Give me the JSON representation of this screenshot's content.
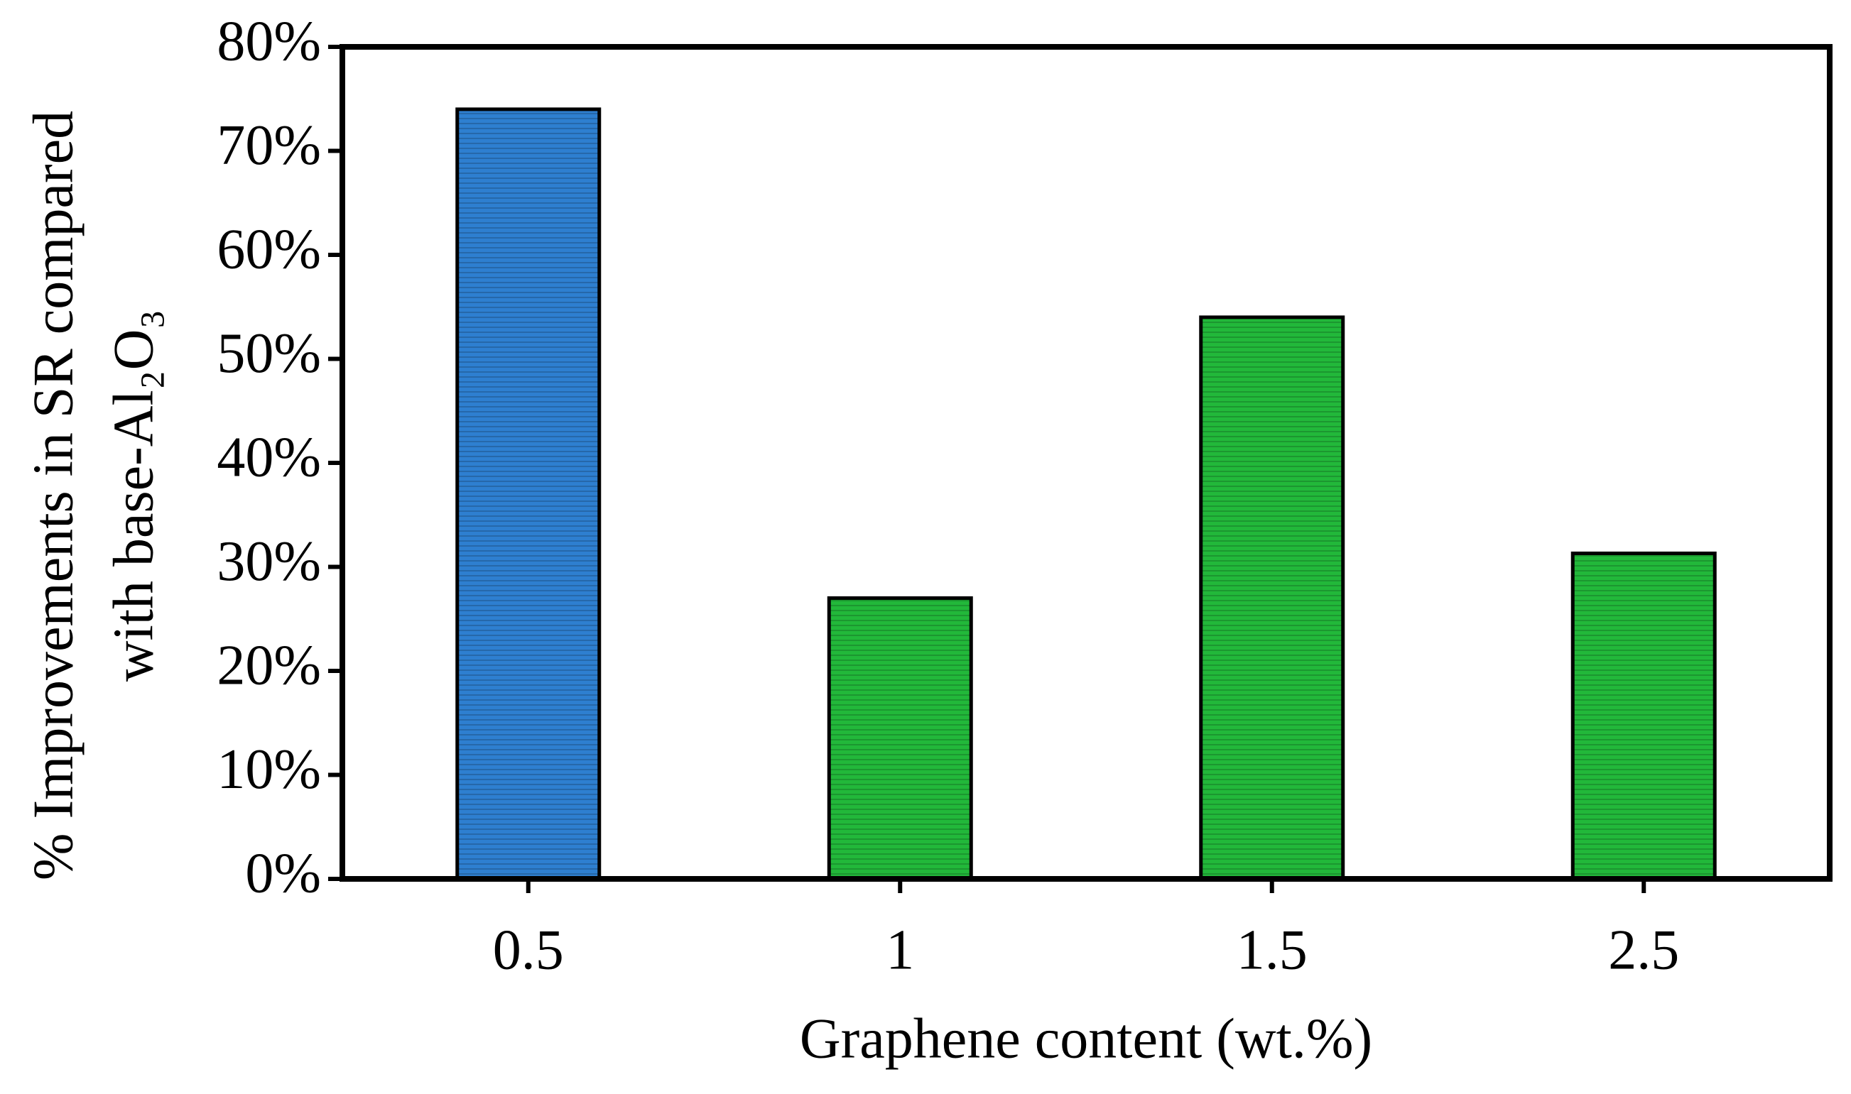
{
  "chart_data": {
    "type": "bar",
    "y_label": [
      "% Improvements  in SR compared",
      "with base-Al₂O₃"
    ],
    "x_label": "Graphene  content  (wt.%)",
    "categories": [
      "0.5",
      "1",
      "1.5",
      "2.5"
    ],
    "values": [
      74,
      27,
      54,
      31.3
    ],
    "colors": [
      "#2e7fd0",
      "#22b83a",
      "#22b83a",
      "#22b83a"
    ],
    "ylim": [
      0,
      80
    ],
    "yticks": [
      {
        "value": 0,
        "label": "0%"
      },
      {
        "value": 10,
        "label": "10%"
      },
      {
        "value": 20,
        "label": "20%"
      },
      {
        "value": 30,
        "label": "30%"
      },
      {
        "value": 40,
        "label": "40%"
      },
      {
        "value": 50,
        "label": "50%"
      },
      {
        "value": 60,
        "label": "60%"
      },
      {
        "value": 70,
        "label": "70%"
      },
      {
        "value": 80,
        "label": "80%"
      }
    ],
    "grid": false
  }
}
